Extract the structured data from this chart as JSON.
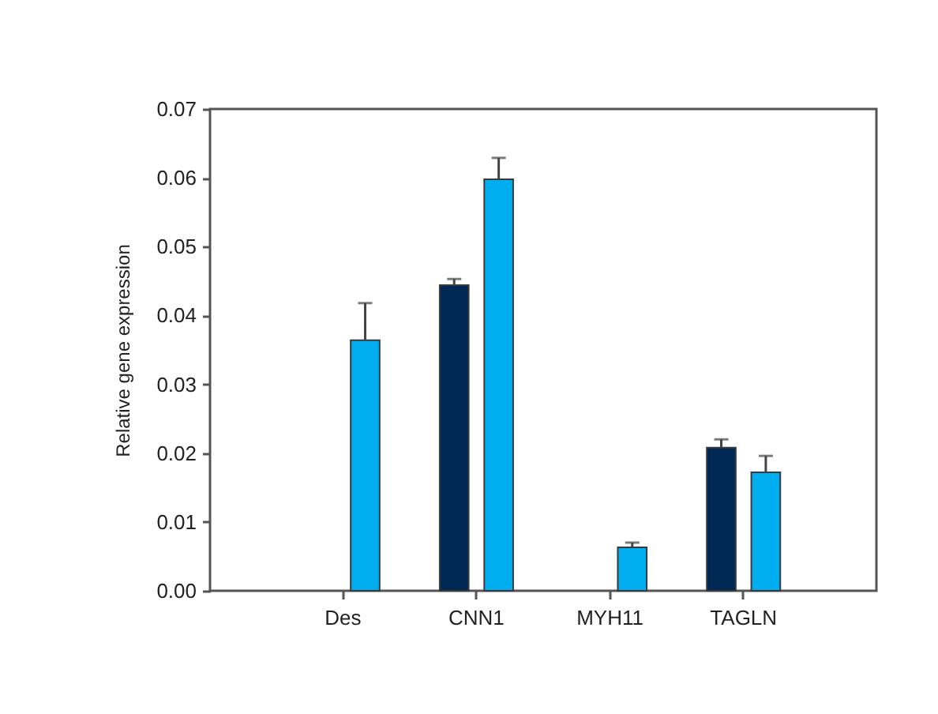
{
  "chart_data": {
    "type": "bar",
    "ylabel": "Relative gene expression",
    "categories": [
      "Des",
      "CNN1",
      "MYH11",
      "TAGLN"
    ],
    "ylim": [
      0,
      0.07
    ],
    "yticks": [
      {
        "value": 0,
        "label": "0.00"
      },
      {
        "value": 0.01,
        "label": "0.01"
      },
      {
        "value": 0.02,
        "label": "0.02"
      },
      {
        "value": 0.03,
        "label": "0.03"
      },
      {
        "value": 0.04,
        "label": "0.04"
      },
      {
        "value": 0.05,
        "label": "0.05"
      },
      {
        "value": 0.06,
        "label": "0.06"
      },
      {
        "value": 0.07,
        "label": "0.07"
      }
    ],
    "grid": false,
    "legend": false,
    "series": [
      {
        "color": "#002855",
        "values": [
          null,
          0.0444,
          null,
          0.0208
        ],
        "errors": [
          null,
          [
            0.0444,
            0.0453
          ],
          null,
          [
            0.0208,
            0.022
          ]
        ]
      },
      {
        "color": "#00aeef",
        "values": [
          0.0364,
          0.0598,
          0.0063,
          0.0172
        ],
        "errors": [
          [
            0.0364,
            0.0418
          ],
          [
            0.0598,
            0.0629
          ],
          [
            0.0063,
            0.007
          ],
          [
            0.0172,
            0.0196
          ]
        ]
      }
    ]
  }
}
